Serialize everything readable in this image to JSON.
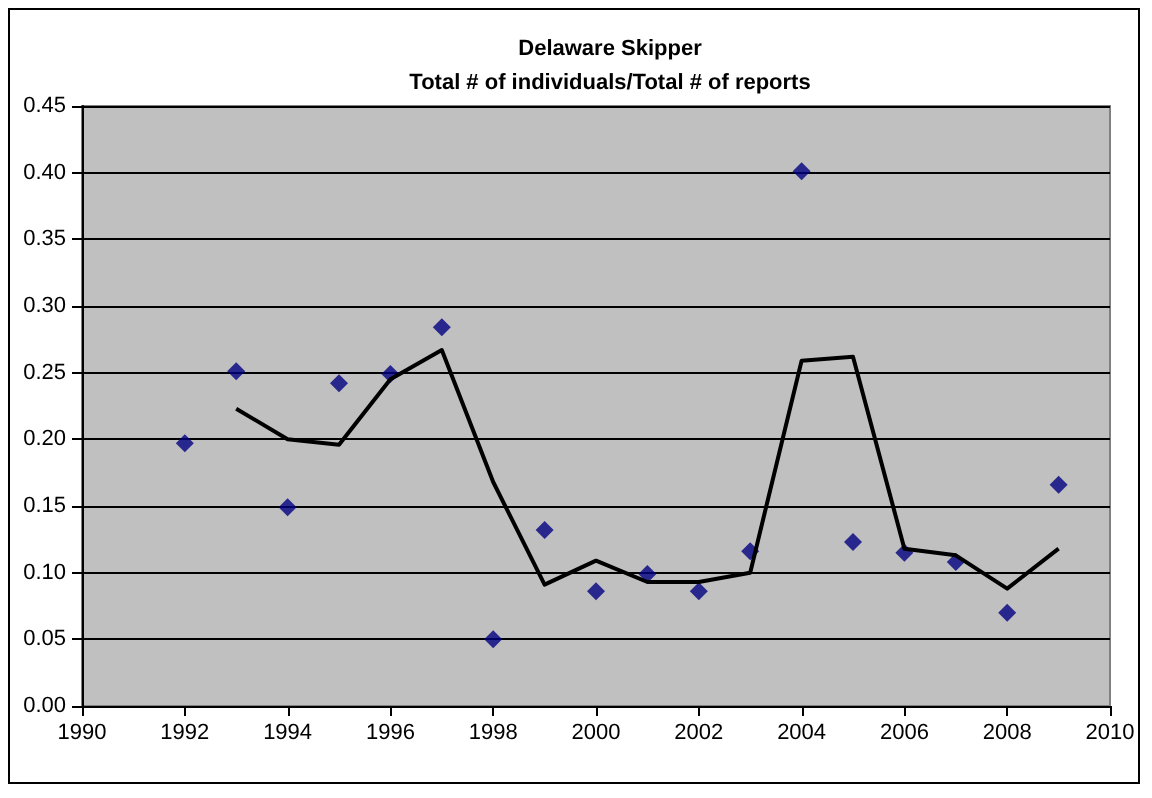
{
  "chart_data": {
    "type": "scatter",
    "title": "Delaware Skipper\nTotal # of individuals/Total # of reports",
    "xlim": [
      1990,
      2010
    ],
    "xticks": [
      1990,
      1992,
      1994,
      1996,
      1998,
      2000,
      2002,
      2004,
      2006,
      2008,
      2010
    ],
    "ylim": [
      0,
      0.45
    ],
    "yticks": [
      {
        "value": 0,
        "label": "0.00"
      },
      0.05,
      {
        "value": 0.1,
        "label": "0.10"
      },
      0.15,
      {
        "value": 0.2,
        "label": "0.20"
      },
      0.25,
      {
        "value": 0.3,
        "label": "0.30"
      },
      0.35,
      {
        "value": 0.4,
        "label": "0.40"
      },
      0.45
    ],
    "grid": "y",
    "series": [
      {
        "color": "#000080",
        "marker": "diamond",
        "x": [
          1992,
          1993,
          1994,
          1995,
          1996,
          1997,
          1998,
          1999,
          2000,
          2001,
          2002,
          2003,
          2004,
          2005,
          2006,
          2007,
          2008,
          2009
        ],
        "values": [
          0.197,
          0.251,
          0.149,
          0.242,
          0.249,
          0.284,
          0.05,
          0.132,
          0.086,
          0.099,
          0.086,
          0.116,
          0.401,
          0.123,
          0.115,
          0.108,
          0.07,
          0.166
        ]
      },
      {
        "type": "line",
        "color": "#000000",
        "marker": "none",
        "line_style": "solid",
        "x": [
          1993,
          1994,
          1995,
          1996,
          1997,
          1998,
          1999,
          2000,
          2001,
          2002,
          2003,
          2004,
          2005,
          2006,
          2007,
          2008,
          2009
        ],
        "values": [
          0.223,
          0.2,
          0.196,
          0.245,
          0.267,
          0.168,
          0.091,
          0.109,
          0.093,
          0.093,
          0.1,
          0.259,
          0.262,
          0.118,
          0.113,
          0.088,
          0.118
        ]
      }
    ]
  }
}
